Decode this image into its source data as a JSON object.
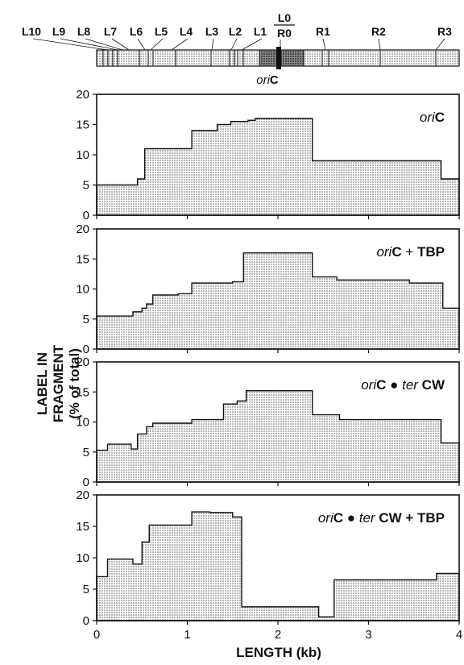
{
  "map": {
    "fragments_left": [
      "L10",
      "L9",
      "L8",
      "L7",
      "L6",
      "L5",
      "L4",
      "L3",
      "L2",
      "L1"
    ],
    "fragments_right": [
      "R1",
      "R2",
      "R3"
    ],
    "center_top": "L0",
    "center_bottom": "R0",
    "origin_label": {
      "italic": "ori",
      "bold": "C"
    }
  },
  "y_axis_title": [
    "LABEL IN",
    "FRAGMENT",
    "(% of total)"
  ],
  "x_axis_title": "LENGTH (kb)",
  "x_ticks": [
    "0",
    "1",
    "2",
    "3",
    "4"
  ],
  "y_ticks": [
    "0",
    "5",
    "10",
    "15",
    "20"
  ],
  "colors": {
    "fill": "#d6d6d6",
    "line": "#111111",
    "background": "#ffffff"
  },
  "chart_data": [
    {
      "type": "area",
      "panel_label": [
        {
          "t": "ori",
          "s": "it"
        },
        {
          "t": "C",
          "s": "bd"
        }
      ],
      "xlim": [
        0,
        4
      ],
      "ylim": [
        0,
        20
      ],
      "x": [
        0,
        0.33,
        0.45,
        0.53,
        0.67,
        1.05,
        1.33,
        1.48,
        1.67,
        1.75,
        1.82,
        1.88,
        2.1,
        2.38,
        3.8,
        4.0
      ],
      "y": [
        5,
        5,
        6,
        11,
        11,
        14,
        15,
        15.5,
        15.7,
        16,
        16,
        16,
        16,
        9,
        6,
        6
      ]
    },
    {
      "type": "area",
      "panel_label": [
        {
          "t": "ori",
          "s": "it"
        },
        {
          "t": "C",
          "s": "bd"
        },
        {
          "t": " + ",
          "s": "n"
        },
        {
          "t": "TBP",
          "s": "bd"
        }
      ],
      "xlim": [
        0,
        4
      ],
      "ylim": [
        0,
        20
      ],
      "x": [
        0,
        0.4,
        0.5,
        0.55,
        0.62,
        0.9,
        1.05,
        1.5,
        1.62,
        2.05,
        2.38,
        2.65,
        3.0,
        3.45,
        3.82,
        4.0
      ],
      "y": [
        5.5,
        6.2,
        6.8,
        7.5,
        9,
        9.2,
        11,
        11.2,
        16,
        16,
        12,
        11.5,
        11.5,
        11,
        6.8,
        6.8
      ]
    },
    {
      "type": "area",
      "panel_label": [
        {
          "t": "ori",
          "s": "it"
        },
        {
          "t": "C ",
          "s": "bd"
        },
        {
          "t": "● ",
          "s": "n"
        },
        {
          "t": "ter",
          "s": "it"
        },
        {
          "t": " CW",
          "s": "bd"
        }
      ],
      "xlim": [
        0,
        4
      ],
      "ylim": [
        0,
        20
      ],
      "x": [
        0,
        0.12,
        0.38,
        0.45,
        0.55,
        0.62,
        0.75,
        1.05,
        1.4,
        1.55,
        1.65,
        1.8,
        2.05,
        2.38,
        2.68,
        3.0,
        3.35,
        3.8,
        4.0
      ],
      "y": [
        5.3,
        6.3,
        5.5,
        8,
        9.2,
        9.8,
        9.8,
        10.4,
        13,
        13.5,
        15.2,
        15.2,
        15.2,
        11.2,
        10.4,
        10.4,
        10.4,
        6.5,
        6.5
      ]
    },
    {
      "type": "area",
      "panel_label": [
        {
          "t": "ori",
          "s": "it"
        },
        {
          "t": "C ",
          "s": "bd"
        },
        {
          "t": "● ",
          "s": "n"
        },
        {
          "t": "ter",
          "s": "it"
        },
        {
          "t": " CW + ",
          "s": "bd"
        },
        {
          "t": "TBP",
          "s": "bd"
        }
      ],
      "xlim": [
        0,
        4
      ],
      "ylim": [
        0,
        20
      ],
      "x": [
        0,
        0.12,
        0.4,
        0.5,
        0.58,
        0.72,
        1.05,
        1.25,
        1.5,
        1.6,
        2.3,
        2.45,
        2.62,
        3.0,
        3.4,
        3.75,
        4.0
      ],
      "y": [
        7,
        9.8,
        9,
        12.5,
        15.2,
        15.2,
        17.3,
        17.2,
        16.5,
        2.2,
        2.2,
        0.6,
        6.5,
        6.5,
        6.5,
        7.5,
        7.5
      ]
    }
  ]
}
